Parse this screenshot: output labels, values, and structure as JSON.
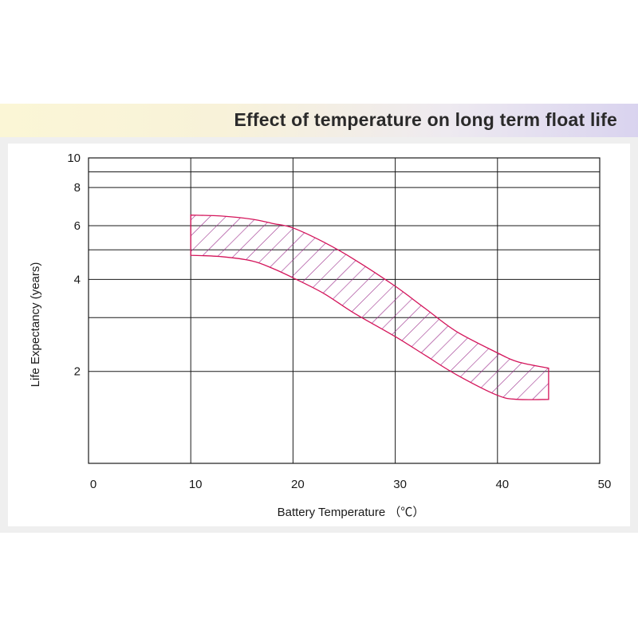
{
  "chart_data": {
    "type": "area",
    "title": "Effect of temperature on long term float life",
    "xlabel": "Battery Temperature  （℃）",
    "ylabel": "Life Expectancy (years)",
    "xlim": [
      0,
      50
    ],
    "ylim": [
      1,
      10
    ],
    "yscale": "log",
    "x_ticks": [
      0,
      10,
      20,
      30,
      40,
      50
    ],
    "y_tick_labels": [
      2,
      4,
      6,
      8,
      10
    ],
    "y_grid": [
      2,
      3,
      4,
      5,
      6,
      8,
      9,
      10
    ],
    "grid": true,
    "fill_pattern": "diagonal-hatch",
    "band_color": "#d4145a",
    "series": [
      {
        "x": [
          10,
          13,
          16,
          18,
          20,
          23,
          26,
          30,
          33,
          36,
          40,
          42,
          45
        ],
        "values": [
          6.5,
          6.45,
          6.3,
          6.1,
          5.9,
          5.3,
          4.65,
          3.8,
          3.2,
          2.7,
          2.3,
          2.15,
          2.05
        ]
      },
      {
        "x": [
          10,
          13,
          16,
          18,
          20,
          23,
          26,
          30,
          33,
          36,
          40,
          42,
          45
        ],
        "values": [
          4.8,
          4.75,
          4.6,
          4.35,
          4.05,
          3.6,
          3.1,
          2.6,
          2.25,
          1.95,
          1.67,
          1.62,
          1.62
        ]
      }
    ]
  }
}
